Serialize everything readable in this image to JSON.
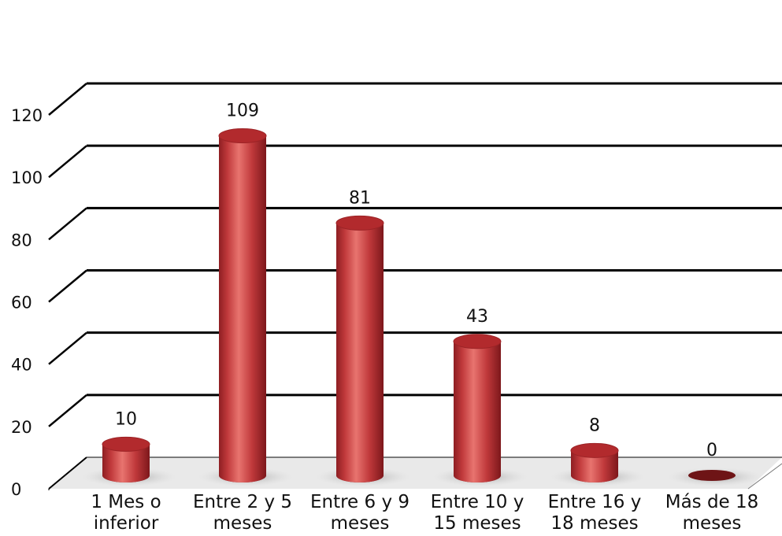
{
  "chart_data": {
    "type": "bar",
    "style": "3d-cylinder",
    "categories": [
      [
        "1 Mes o",
        "inferior"
      ],
      [
        "Entre 2 y 5",
        "meses"
      ],
      [
        "Entre 6 y 9",
        "meses"
      ],
      [
        "Entre 10 y",
        "15  meses"
      ],
      [
        "Entre 16 y",
        "18  meses"
      ],
      [
        "Más de 18",
        "meses"
      ]
    ],
    "values": [
      10,
      109,
      81,
      43,
      8,
      0
    ],
    "data_labels": [
      "10",
      "109",
      "81",
      "43",
      "8",
      "0"
    ],
    "yticks": [
      0,
      20,
      40,
      60,
      80,
      100,
      120
    ],
    "ylim": [
      0,
      120
    ],
    "title": "",
    "xlabel": "",
    "ylabel": "",
    "grid": true,
    "legend": "none",
    "colors": {
      "bar": "#c0393b",
      "bar_light": "#e8746f",
      "bar_dark": "#8e1e22",
      "bar_top": "#b22a2d",
      "zero_disc": "#6e1416",
      "grid": "#000000",
      "floor": "#e9e9e9"
    }
  }
}
